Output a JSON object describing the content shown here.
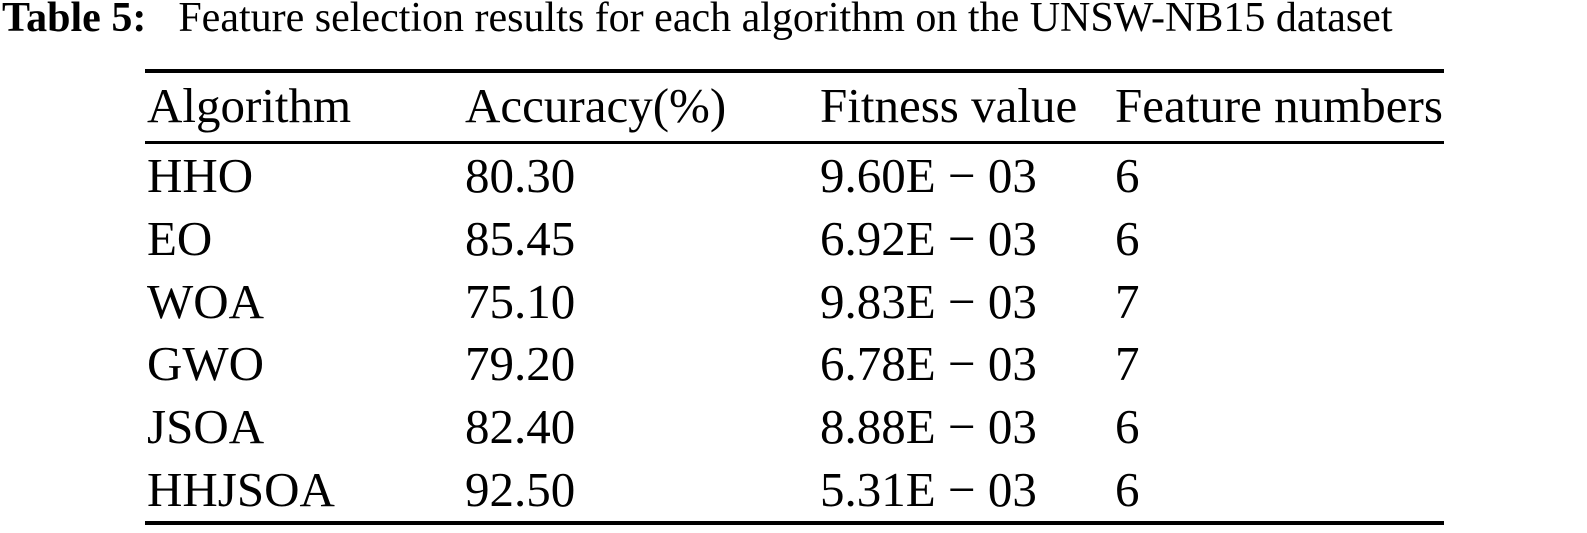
{
  "caption": {
    "label": "Table 5:",
    "text": "Feature selection results for each algorithm on the UNSW-NB15 dataset"
  },
  "table": {
    "columns": [
      "Algorithm",
      "Accuracy(%)",
      "Fitness value",
      "Feature numbers"
    ],
    "rows": [
      {
        "algorithm": "HHO",
        "accuracy": "80.30",
        "fitness": "9.60E − 03",
        "features": "6"
      },
      {
        "algorithm": "EO",
        "accuracy": "85.45",
        "fitness": "6.92E − 03",
        "features": "6"
      },
      {
        "algorithm": "WOA",
        "accuracy": "75.10",
        "fitness": "9.83E − 03",
        "features": "7"
      },
      {
        "algorithm": "GWO",
        "accuracy": "79.20",
        "fitness": "6.78E − 03",
        "features": "7"
      },
      {
        "algorithm": "JSOA",
        "accuracy": "82.40",
        "fitness": "8.88E − 03",
        "features": "6"
      },
      {
        "algorithm": "HHJSOA",
        "accuracy": "92.50",
        "fitness": "5.31E − 03",
        "features": "6"
      }
    ]
  },
  "chart_data": {
    "type": "table",
    "title": "Table 5: Feature selection results for each algorithm on the UNSW-NB15 dataset",
    "columns": [
      "Algorithm",
      "Accuracy(%)",
      "Fitness value",
      "Feature numbers"
    ],
    "rows": [
      [
        "HHO",
        80.3,
        0.0096,
        6
      ],
      [
        "EO",
        85.45,
        0.00692,
        6
      ],
      [
        "WOA",
        75.1,
        0.00983,
        7
      ],
      [
        "GWO",
        79.2,
        0.00678,
        7
      ],
      [
        "JSOA",
        82.4,
        0.00888,
        6
      ],
      [
        "HHJSOA",
        92.5,
        0.00531,
        6
      ]
    ]
  }
}
